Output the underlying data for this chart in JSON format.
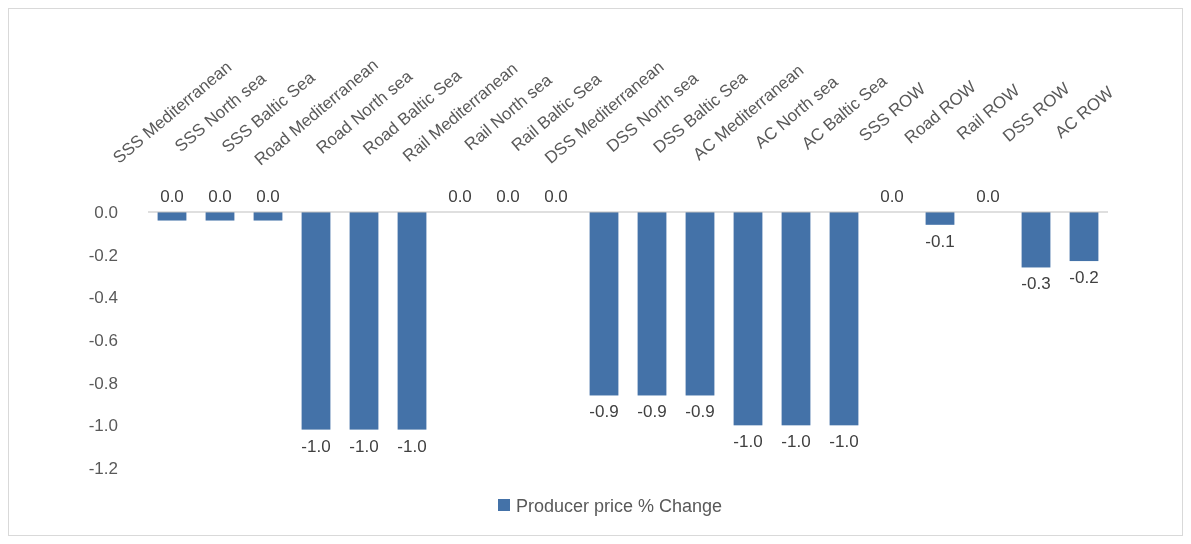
{
  "chart_data": {
    "type": "bar",
    "categories": [
      "SSS Mediterranean",
      "SSS North sea",
      "SSS Baltic Sea",
      "Road Mediterranean",
      "Road North sea",
      "Road Baltic Sea",
      "Rail Mediterranean",
      "Rail North sea",
      "Rail Baltic Sea",
      "DSS Mediterranean",
      "DSS North sea",
      "DSS Baltic Sea",
      "AC Mediterranean",
      "AC North sea",
      "AC Baltic Sea",
      "SSS ROW",
      "Road ROW",
      "Rail ROW",
      "DSS ROW",
      "AC ROW"
    ],
    "series": [
      {
        "name": "Producer price % Change",
        "color": "#4472a8",
        "values": [
          -0.04,
          -0.04,
          -0.04,
          -1.02,
          -1.02,
          -1.02,
          0,
          0,
          0,
          -0.86,
          -0.86,
          -0.86,
          -1.0,
          -1.0,
          -1.0,
          0,
          -0.06,
          0,
          -0.26,
          -0.23
        ],
        "value_labels": [
          "0.0",
          "0.0",
          "0.0",
          "-1.0",
          "-1.0",
          "-1.0",
          "0.0",
          "0.0",
          "0.0",
          "-0.9",
          "-0.9",
          "-0.9",
          "-1.0",
          "-1.0",
          "-1.0",
          "0.0",
          "-0.1",
          "0.0",
          "-0.3",
          "-0.2"
        ]
      }
    ],
    "ylim": [
      -1.2,
      0
    ],
    "yticks": [
      {
        "value": 0,
        "label": "0.0"
      },
      {
        "value": -0.2,
        "label": "-0.2"
      },
      {
        "value": -0.4,
        "label": "-0.4"
      },
      {
        "value": -0.6,
        "label": "-0.6"
      },
      {
        "value": -0.8,
        "label": "-0.8"
      },
      {
        "value": -1.0,
        "label": "-1.0"
      },
      {
        "value": -1.2,
        "label": "-1.2"
      }
    ],
    "legend": "bottom",
    "grid": false
  }
}
